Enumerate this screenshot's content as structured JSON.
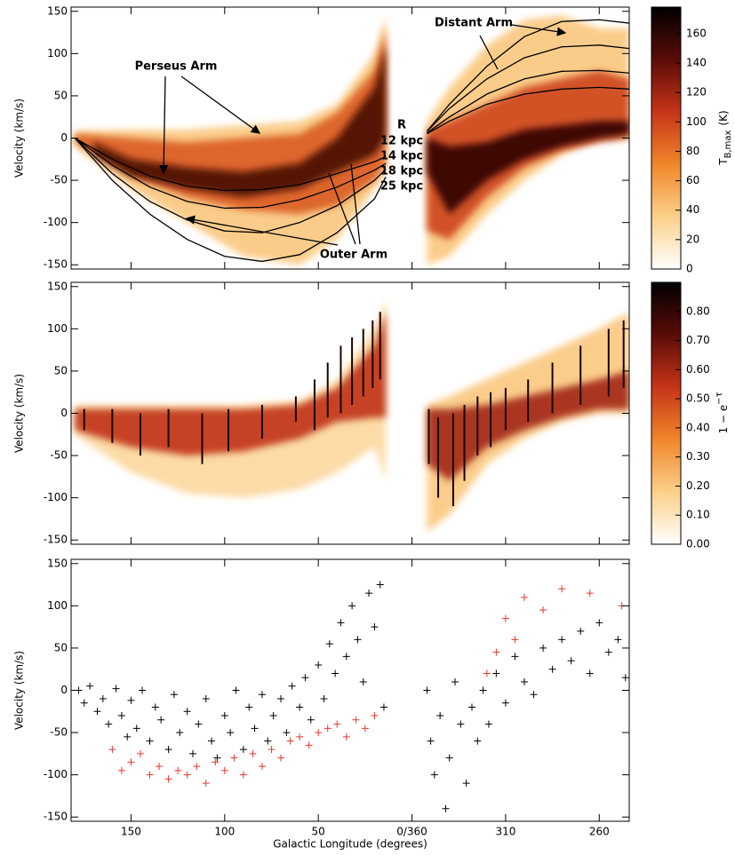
{
  "chart_data": [
    {
      "type": "heatmap",
      "ylabel": "Velocity (km/s)",
      "xlim": [
        182,
        -116
      ],
      "xticks": [
        150,
        100,
        50,
        0,
        -50,
        -100
      ],
      "ylim": [
        -155,
        155
      ],
      "yticks": [
        -150,
        -100,
        -50,
        0,
        50,
        100,
        150
      ],
      "clim": [
        0,
        178
      ],
      "cticks": [
        0,
        20,
        40,
        60,
        80,
        100,
        120,
        140,
        160
      ],
      "colorbar_label": "T",
      "colorbar_label_sub": "B,max",
      "colorbar_label_unit": "(K)",
      "colormap": [
        "#ffffff",
        "#fbd08a",
        "#f0862a",
        "#c63418",
        "#5a0c08",
        "#000000"
      ],
      "annotations": [
        "Perseus Arm",
        "Distant Arm",
        "Outer Arm",
        "R",
        "12 kpc",
        "14 kpc",
        "18 kpc",
        "25 kpc"
      ],
      "bands": [
        {
          "x": [
            180,
            150,
            120,
            90,
            60,
            40,
            20,
            14
          ],
          "low": [
            -10,
            -60,
            -100,
            -140,
            -150,
            -120,
            -60,
            -40
          ],
          "high": [
            8,
            10,
            10,
            15,
            20,
            40,
            100,
            145
          ],
          "value": 40
        },
        {
          "x": [
            180,
            150,
            120,
            90,
            60,
            40,
            20,
            14
          ],
          "low": [
            -5,
            -45,
            -70,
            -85,
            -90,
            -80,
            -50,
            -30
          ],
          "high": [
            5,
            0,
            -5,
            0,
            5,
            30,
            80,
            130
          ],
          "value": 90
        },
        {
          "x": [
            170,
            150,
            120,
            90,
            60,
            40,
            20,
            14
          ],
          "low": [
            -20,
            -45,
            -60,
            -70,
            -60,
            -40,
            -20,
            0
          ],
          "high": [
            -5,
            -25,
            -35,
            -40,
            -30,
            0,
            60,
            110
          ],
          "value": 150
        },
        {
          "x": [
            -8,
            -20,
            -40,
            -60,
            -80,
            -100,
            -116
          ],
          "low": [
            -150,
            -140,
            -90,
            -50,
            -20,
            0,
            0
          ],
          "high": [
            20,
            60,
            110,
            140,
            145,
            130,
            130
          ],
          "value": 40
        },
        {
          "x": [
            -8,
            -20,
            -40,
            -60,
            -80,
            -100,
            -116
          ],
          "low": [
            -110,
            -120,
            -70,
            -35,
            -15,
            -5,
            0
          ],
          "high": [
            10,
            20,
            40,
            60,
            70,
            80,
            70
          ],
          "value": 100
        },
        {
          "x": [
            -8,
            -20,
            -40,
            -60,
            -80,
            -100,
            -116
          ],
          "low": [
            -40,
            -90,
            -50,
            -25,
            -10,
            0,
            5
          ],
          "high": [
            0,
            -10,
            -5,
            10,
            15,
            20,
            20
          ],
          "value": 160
        }
      ],
      "series": [
        {
          "color": "#000000",
          "x": [
            180,
            160,
            140,
            120,
            100,
            80,
            60,
            40,
            20,
            14
          ],
          "values": [
            0,
            -25,
            -45,
            -57,
            -62,
            -61,
            -55,
            -42,
            -28,
            -22
          ]
        },
        {
          "color": "#000000",
          "x": [
            180,
            160,
            140,
            120,
            100,
            80,
            60,
            40,
            20,
            14
          ],
          "values": [
            0,
            -32,
            -58,
            -75,
            -83,
            -82,
            -73,
            -58,
            -38,
            -30
          ]
        },
        {
          "color": "#000000",
          "x": [
            180,
            160,
            140,
            120,
            100,
            80,
            60,
            40,
            20,
            14
          ],
          "values": [
            0,
            -42,
            -75,
            -97,
            -110,
            -112,
            -100,
            -80,
            -50,
            -37
          ]
        },
        {
          "color": "#000000",
          "x": [
            180,
            160,
            140,
            120,
            100,
            80,
            60,
            40,
            20,
            14
          ],
          "values": [
            0,
            -50,
            -90,
            -120,
            -140,
            -146,
            -138,
            -112,
            -72,
            -46
          ]
        },
        {
          "color": "#000000",
          "x": [
            -8,
            -20,
            -40,
            -60,
            -80,
            -100,
            -116
          ],
          "values": [
            8,
            40,
            85,
            120,
            138,
            140,
            136
          ]
        },
        {
          "color": "#000000",
          "x": [
            -8,
            -20,
            -40,
            -60,
            -80,
            -100,
            -116
          ],
          "values": [
            8,
            35,
            70,
            95,
            108,
            110,
            106
          ]
        },
        {
          "color": "#000000",
          "x": [
            -8,
            -20,
            -40,
            -60,
            -80,
            -100,
            -116
          ],
          "values": [
            6,
            25,
            52,
            70,
            79,
            80,
            77
          ]
        },
        {
          "color": "#000000",
          "x": [
            -8,
            -20,
            -40,
            -60,
            -80,
            -100,
            -116
          ],
          "values": [
            5,
            20,
            40,
            52,
            58,
            60,
            58
          ]
        }
      ]
    },
    {
      "type": "heatmap",
      "ylabel": "Velocity (km/s)",
      "xlim": [
        182,
        -116
      ],
      "xticks": [
        150,
        100,
        50,
        0,
        -50,
        -100
      ],
      "ylim": [
        -155,
        155
      ],
      "yticks": [
        -150,
        -100,
        -50,
        0,
        50,
        100,
        150
      ],
      "clim": [
        0,
        0.9
      ],
      "cticks": [
        {
          "value": 0,
          "label": "0.00"
        },
        {
          "value": 0.1,
          "label": "0.10"
        },
        {
          "value": 0.2,
          "label": "0.20"
        },
        {
          "value": 0.3,
          "label": "0.30"
        },
        {
          "value": 0.4,
          "label": "0.40"
        },
        {
          "value": 0.5,
          "label": "0.50"
        },
        {
          "value": 0.6,
          "label": "0.60"
        },
        {
          "value": 0.7,
          "label": "0.70"
        },
        {
          "value": 0.8,
          "label": "0.80"
        }
      ],
      "colorbar_label": "1 − e",
      "colorbar_label_sup": "−τ",
      "colormap": [
        "#ffffff",
        "#fbd08a",
        "#f0862a",
        "#c63418",
        "#5a0c08",
        "#000000"
      ],
      "bands": [
        {
          "x": [
            180,
            150,
            120,
            90,
            60,
            40,
            20,
            14
          ],
          "low": [
            -25,
            -70,
            -95,
            -100,
            -90,
            -70,
            -40,
            -80
          ],
          "high": [
            10,
            10,
            10,
            10,
            15,
            40,
            100,
            135
          ],
          "value": 0.15
        },
        {
          "x": [
            180,
            150,
            120,
            90,
            60,
            40,
            20,
            14
          ],
          "low": [
            -20,
            -40,
            -50,
            -45,
            -30,
            -10,
            -5,
            -5
          ],
          "high": [
            5,
            5,
            5,
            5,
            10,
            30,
            80,
            120
          ],
          "value": 0.55
        },
        {
          "x": [
            -8,
            -20,
            -40,
            -60,
            -80,
            -100,
            -116
          ],
          "low": [
            -140,
            -120,
            -60,
            -30,
            -10,
            0,
            0
          ],
          "high": [
            10,
            20,
            40,
            60,
            80,
            100,
            120
          ],
          "value": 0.2
        },
        {
          "x": [
            -8,
            -20,
            -40,
            -60,
            -80,
            -100,
            -116
          ],
          "low": [
            -60,
            -80,
            -40,
            -20,
            -5,
            5,
            5
          ],
          "high": [
            5,
            5,
            10,
            20,
            30,
            40,
            50
          ],
          "value": 0.6
        }
      ],
      "streaks": {
        "value": 0.85,
        "x": [
          175,
          160,
          145,
          130,
          112,
          98,
          80,
          62,
          52,
          45,
          38,
          32,
          26,
          21,
          17,
          -9,
          -14,
          -22,
          -28,
          -35,
          -42,
          -50,
          -62,
          -75,
          -90,
          -105,
          -113
        ],
        "low": [
          -20,
          -35,
          -50,
          -40,
          -60,
          -45,
          -30,
          -10,
          -20,
          -5,
          0,
          10,
          20,
          30,
          40,
          -60,
          -100,
          -110,
          -80,
          -50,
          -40,
          -20,
          -10,
          0,
          10,
          20,
          30
        ],
        "high": [
          5,
          5,
          0,
          5,
          0,
          5,
          10,
          20,
          40,
          60,
          80,
          90,
          100,
          110,
          120,
          5,
          -5,
          0,
          10,
          20,
          25,
          30,
          40,
          60,
          80,
          100,
          110
        ]
      }
    },
    {
      "type": "scatter",
      "ylabel": "Velocity (km/s)",
      "xlabel": "Galactic Longitude (degrees)",
      "xlim": [
        182,
        -116
      ],
      "xticks": [
        150,
        100,
        50,
        {
          "value": 0,
          "label": "0/360"
        },
        {
          "value": -50,
          "label": "310"
        },
        {
          "value": -100,
          "label": "260"
        }
      ],
      "ylim": [
        -155,
        155
      ],
      "yticks": [
        -150,
        -100,
        -50,
        0,
        50,
        100,
        150
      ],
      "series": [
        {
          "color": "#000000",
          "x": [
            178,
            175,
            172,
            168,
            165,
            162,
            158,
            155,
            152,
            150,
            147,
            144,
            140,
            137,
            134,
            130,
            127,
            124,
            120,
            117,
            114,
            110,
            107,
            104,
            100,
            97,
            94,
            90,
            87,
            84,
            80,
            77,
            74,
            70,
            67,
            64,
            60,
            57,
            54,
            50,
            47,
            44,
            41,
            38,
            35,
            32,
            29,
            26,
            23,
            20,
            17,
            15,
            -8,
            -10,
            -12,
            -15,
            -18,
            -20,
            -23,
            -26,
            -29,
            -32,
            -35,
            -38,
            -41,
            -45,
            -50,
            -55,
            -60,
            -65,
            -70,
            -75,
            -80,
            -85,
            -90,
            -95,
            -100,
            -105,
            -110,
            -114
          ],
          "values": [
            0,
            -15,
            5,
            -25,
            -10,
            -40,
            2,
            -30,
            -55,
            -12,
            -45,
            0,
            -60,
            -20,
            -35,
            -70,
            -5,
            -50,
            -25,
            -75,
            -40,
            -10,
            -60,
            -80,
            -30,
            -50,
            0,
            -70,
            -20,
            -45,
            -5,
            -60,
            -30,
            -10,
            -50,
            5,
            -20,
            15,
            -35,
            30,
            -10,
            55,
            20,
            80,
            40,
            100,
            60,
            10,
            115,
            75,
            125,
            -20,
            0,
            -60,
            -100,
            -30,
            -140,
            -80,
            10,
            -40,
            -110,
            -20,
            -60,
            0,
            -40,
            20,
            -15,
            40,
            10,
            -5,
            50,
            25,
            60,
            35,
            70,
            20,
            80,
            45,
            60,
            15
          ]
        },
        {
          "color": "#e8382a",
          "x": [
            160,
            155,
            150,
            145,
            140,
            135,
            130,
            125,
            120,
            115,
            110,
            105,
            100,
            95,
            90,
            85,
            80,
            75,
            70,
            65,
            60,
            55,
            50,
            45,
            40,
            35,
            30,
            25,
            20,
            -40,
            -45,
            -50,
            -55,
            -60,
            -70,
            -80,
            -95,
            -112
          ],
          "values": [
            -70,
            -95,
            -85,
            -75,
            -100,
            -90,
            -105,
            -95,
            -100,
            -90,
            -110,
            -85,
            -95,
            -80,
            -100,
            -75,
            -90,
            -70,
            -80,
            -60,
            -55,
            -65,
            -50,
            -45,
            -40,
            -55,
            -35,
            -45,
            -30,
            20,
            45,
            85,
            60,
            110,
            95,
            120,
            115,
            100
          ]
        }
      ]
    }
  ]
}
